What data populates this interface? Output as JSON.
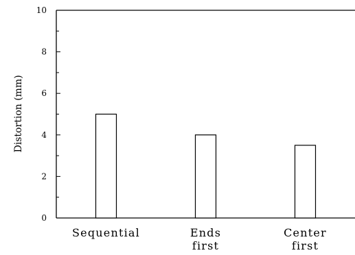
{
  "chart_data": {
    "type": "bar",
    "title": "",
    "xlabel": "",
    "ylabel": "Distortion (mm)",
    "categories": [
      [
        "Sequential"
      ],
      [
        "Ends",
        "first"
      ],
      [
        "Center",
        "first"
      ]
    ],
    "values": [
      5.0,
      4.0,
      3.5
    ],
    "ylim": [
      0,
      10
    ],
    "yticks": [
      0,
      2,
      4,
      6,
      8,
      10
    ],
    "grid": false,
    "colors": {
      "bar_fill": "#ffffff",
      "bar_stroke": "#000000",
      "axis": "#000000"
    }
  }
}
